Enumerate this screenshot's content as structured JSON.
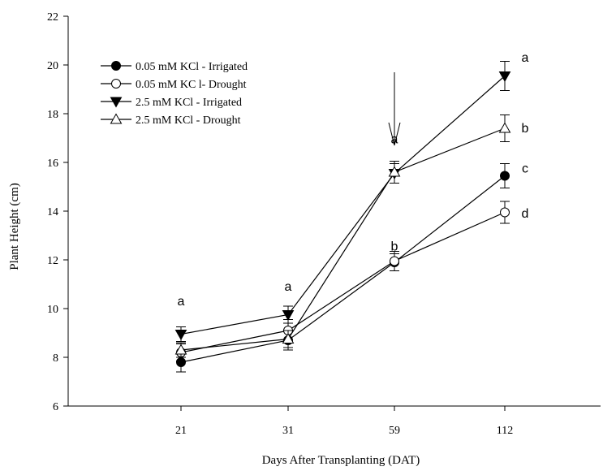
{
  "chart_data": {
    "type": "line",
    "xlabel": "Days After Transplanting (DAT)",
    "ylabel": "Plant Height (cm)",
    "categories": [
      "21",
      "31",
      "59",
      "112"
    ],
    "ylim": [
      6,
      22
    ],
    "yticks": [
      6,
      8,
      10,
      12,
      14,
      16,
      18,
      20,
      22
    ],
    "grid": false,
    "legend_position": "top-left",
    "series": [
      {
        "name": "0.05 mM KCl - Irrigated",
        "marker": "circle-filled",
        "values": [
          7.8,
          8.7,
          11.9,
          15.45
        ],
        "errors": [
          0.4,
          0.4,
          0.35,
          0.5
        ]
      },
      {
        "name": "0.05 mM KC l- Drought",
        "marker": "circle-open",
        "values": [
          8.2,
          9.1,
          11.95,
          13.95
        ],
        "errors": [
          0.35,
          0.45,
          0.4,
          0.45
        ]
      },
      {
        "name": "2.5 mM KCl - Irrigated",
        "marker": "triangle-down-filled",
        "values": [
          8.95,
          9.75,
          15.55,
          19.55
        ],
        "errors": [
          0.3,
          0.35,
          0.4,
          0.6
        ]
      },
      {
        "name": "2.5 mM KCl - Drought",
        "marker": "triangle-up-open",
        "values": [
          8.3,
          8.75,
          15.6,
          17.4
        ],
        "errors": [
          0.3,
          0.35,
          0.45,
          0.55
        ]
      }
    ],
    "annotations": [
      {
        "text": "a",
        "x": "21",
        "y": 10.3
      },
      {
        "text": "a",
        "x": "31",
        "y": 10.9
      },
      {
        "text": "a",
        "x": "59",
        "y": 16.95
      },
      {
        "text": "b",
        "x": "59",
        "y": 12.55
      },
      {
        "text": "a",
        "x": "112",
        "y": 20.3
      },
      {
        "text": "b",
        "x": "112",
        "y": 17.4
      },
      {
        "text": "c",
        "x": "112",
        "y": 15.75
      },
      {
        "text": "d",
        "x": "112",
        "y": 13.9
      }
    ],
    "arrow": {
      "x": "59",
      "y_from": 19.7,
      "y_to": 16.7
    }
  }
}
